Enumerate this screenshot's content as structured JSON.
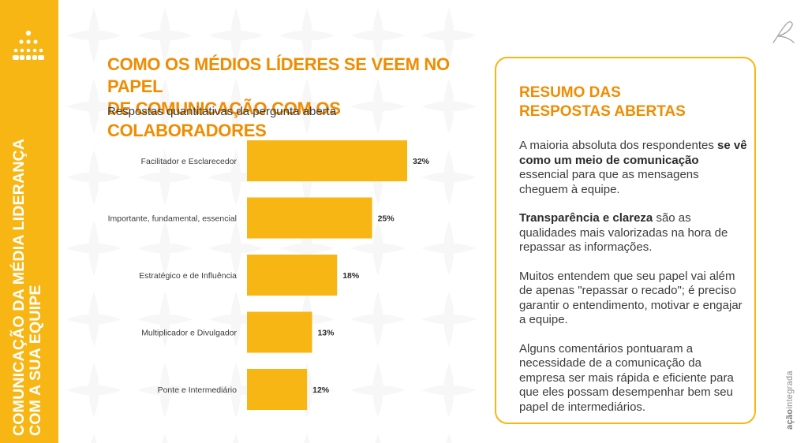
{
  "sidebar": {
    "title_line1": "COMUNICAÇÃO DA MÉDIA LIDERANÇA",
    "title_line2": "COM A SUA EQUIPE",
    "icon": "team-hierarchy-icon"
  },
  "header": {
    "title_line1": "COMO OS MÉDIOS LÍDERES SE VEEM NO PAPEL",
    "title_line2": "DE COMUNICAÇÃO COM OS COLABORADORES",
    "subtitle": "Respostas quantitativas da pergunta aberta"
  },
  "chart_data": {
    "type": "bar",
    "orientation": "horizontal",
    "title": "",
    "xlabel": "",
    "ylabel": "",
    "grid": false,
    "xlim": [
      0,
      40
    ],
    "categories": [
      "Facilitador e Esclarecedor",
      "Importante, fundamental, essencial",
      "Estratégico e de Influência",
      "Multiplicador e Divulgador",
      "Ponte e Intermediário"
    ],
    "values": [
      32,
      25,
      18,
      13,
      12
    ],
    "value_labels": [
      "32%",
      "25%",
      "18%",
      "13%",
      "12%"
    ],
    "bar_color": "#f8b614"
  },
  "summary": {
    "title_line1": "RESUMO DAS",
    "title_line2": "RESPOSTAS ABERTAS",
    "p1_a": "A maioria absoluta dos respondentes ",
    "p1_b": "se vê como um meio de comunicação",
    "p1_c": " essencial para que as mensagens cheguem à equipe.",
    "p2_a": "Transparência e clareza",
    "p2_b": " são as qualidades mais valorizadas na hora de repassar as informações.",
    "p3": "Muitos entendem que seu papel vai além de apenas \"repassar o recado\"; é preciso garantir o entendimento, motivar e engajar a equipe.",
    "p4": "Alguns comentários pontuaram a necessidade de a comunicação da empresa ser mais rápida e eficiente para que eles possam desempenhar bem seu papel de intermediários."
  },
  "brand": {
    "name_a": "ação",
    "name_b": "integrada",
    "icon": "brand-logo-icon"
  },
  "colors": {
    "accent": "#f8b614",
    "title_orange": "#f08c00",
    "text": "#3c3c3c"
  }
}
